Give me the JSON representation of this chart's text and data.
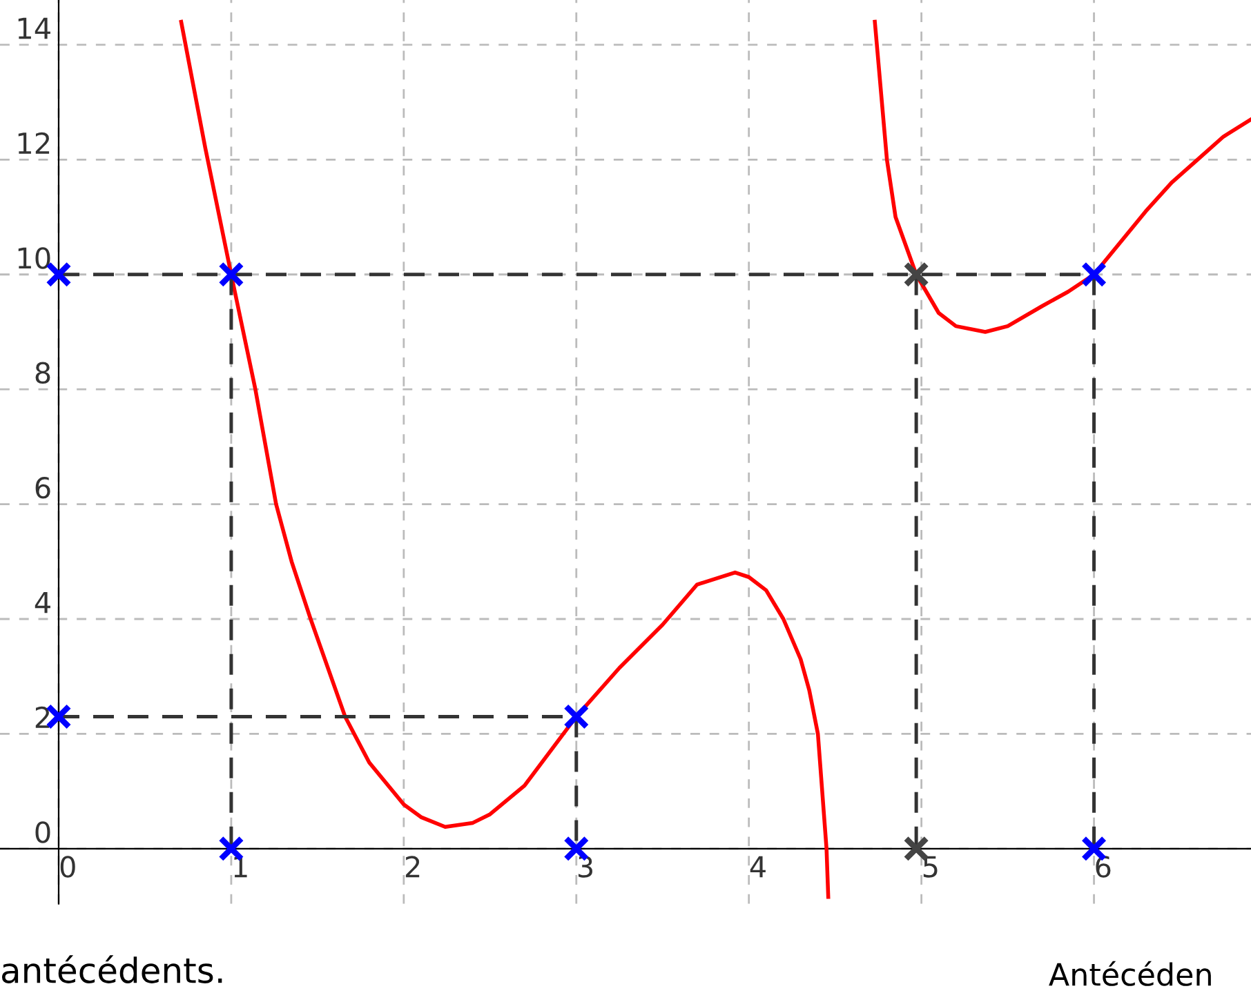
{
  "chart_data": {
    "type": "line",
    "xlim": [
      -0.34,
      6.91
    ],
    "ylim": [
      -0.96,
      14.78
    ],
    "xticks": [
      0,
      1,
      2,
      3,
      4,
      5,
      6
    ],
    "yticks": [
      0,
      2,
      4,
      6,
      8,
      10,
      12,
      14
    ],
    "grid": true,
    "series": [
      {
        "color": "#ff0000",
        "line_style": "solid",
        "x": [
          0.71,
          0.85,
          1,
          1.14,
          1.26,
          1.35,
          1.46,
          1.66,
          1.8,
          2,
          2.1,
          2.24,
          2.4,
          2.5,
          2.7,
          3,
          3.25,
          3.5,
          3.7,
          3.92,
          4,
          4.1,
          4.2,
          4.3,
          4.35,
          4.4,
          4.45,
          4.46
        ],
        "values": [
          14.4,
          12.2,
          10,
          8,
          6,
          5,
          4,
          2.3,
          1.5,
          0.77,
          0.55,
          0.38,
          0.45,
          0.6,
          1.1,
          2.3,
          3.15,
          3.9,
          4.6,
          4.81,
          4.73,
          4.5,
          4,
          3.3,
          2.76,
          2,
          0,
          -0.84
        ]
      },
      {
        "color": "#ff0000",
        "line_style": "solid",
        "x": [
          4.73,
          4.8,
          4.85,
          4.97,
          5.1,
          5.2,
          5.37,
          5.5,
          5.7,
          5.85,
          6,
          6.3,
          6.45,
          6.6,
          6.75,
          6.91
        ],
        "values": [
          14.4,
          12,
          11,
          10,
          9.33,
          9.1,
          9,
          9.1,
          9.45,
          9.7,
          10,
          11.1,
          11.6,
          12,
          12.4,
          12.7
        ]
      },
      {
        "type": "line",
        "color": "#333333",
        "line_style": "dashed",
        "x": [
          0,
          6
        ],
        "values": [
          10,
          10
        ]
      },
      {
        "type": "line",
        "color": "#333333",
        "line_style": "dashed",
        "x": [
          1,
          1
        ],
        "values": [
          10,
          0
        ]
      },
      {
        "type": "line",
        "color": "#333333",
        "line_style": "dashed",
        "x": [
          4.97,
          4.97
        ],
        "values": [
          10,
          0
        ]
      },
      {
        "type": "line",
        "color": "#333333",
        "line_style": "dashed",
        "x": [
          6,
          6
        ],
        "values": [
          10,
          0
        ]
      },
      {
        "type": "line",
        "color": "#333333",
        "line_style": "dashed",
        "x": [
          0,
          3
        ],
        "values": [
          2.3,
          2.3
        ]
      },
      {
        "type": "line",
        "color": "#333333",
        "line_style": "dashed",
        "x": [
          3,
          3
        ],
        "values": [
          2.3,
          0
        ]
      },
      {
        "type": "scatter",
        "color": "#0000ff",
        "marker": "cross",
        "x": [
          0,
          1,
          0,
          3,
          1,
          3,
          6,
          6
        ],
        "values": [
          10,
          10,
          2.3,
          2.3,
          0,
          0,
          0,
          10
        ]
      },
      {
        "type": "scatter",
        "color": "#444444",
        "marker": "cross",
        "x": [
          4.97,
          4.97
        ],
        "values": [
          10,
          0
        ]
      }
    ],
    "annotations": [
      "antécédents.",
      "Antécéden"
    ]
  }
}
